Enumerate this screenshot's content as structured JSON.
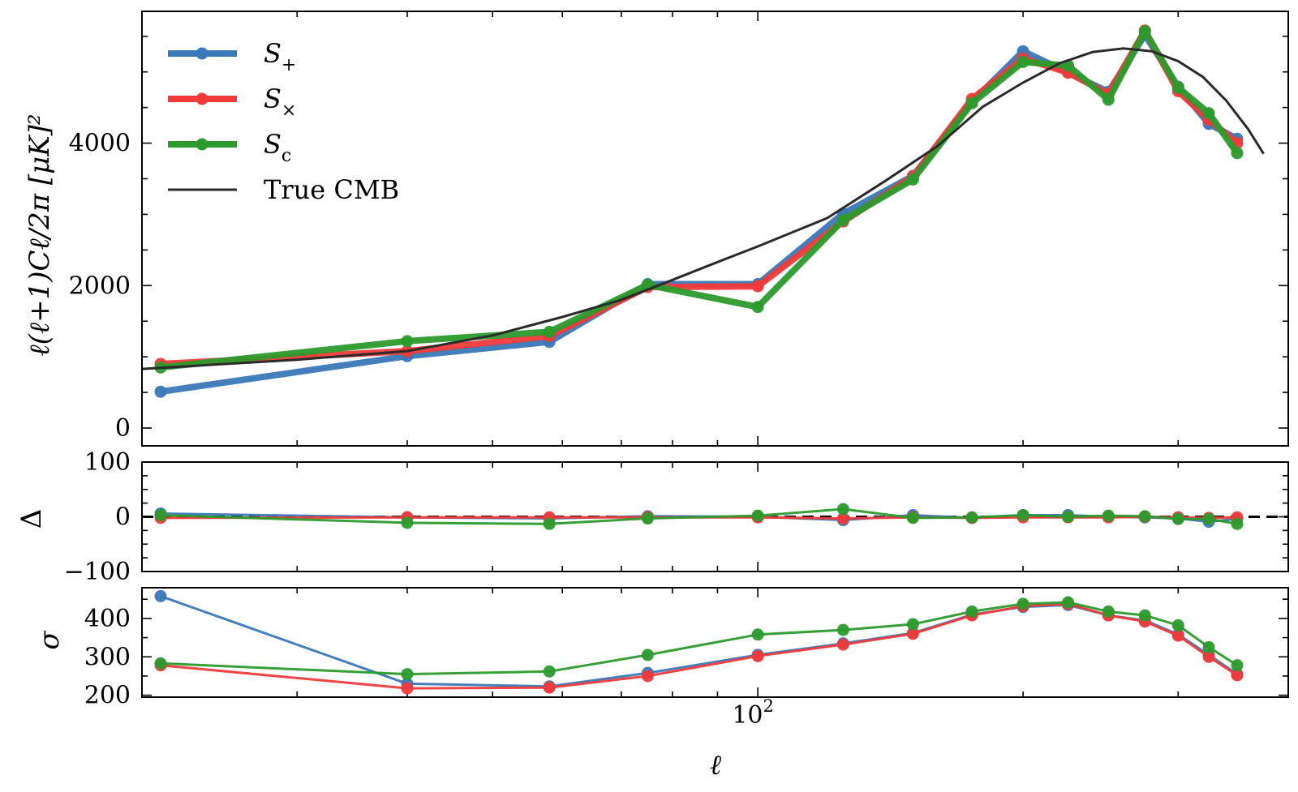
{
  "chart_data": {
    "type": "line",
    "x": [
      21,
      40,
      58,
      75,
      100,
      125,
      150,
      175,
      200,
      225,
      250,
      275,
      300,
      325,
      350,
      375
    ],
    "xlabel": "ℓ",
    "x_scale": "log",
    "xlim": [
      20,
      400
    ],
    "x_ticks": [
      {
        "value": 100,
        "base": "10",
        "exp": "2"
      }
    ],
    "legend_position": "upper-left",
    "panels": [
      {
        "name": "spectrum",
        "ylabel": "ℓ(ℓ+1)Cℓ/2π [μK]²",
        "ylim": [
          -250,
          5850
        ],
        "yticks": [
          0,
          2000,
          4000
        ],
        "series": [
          {
            "name": "S+",
            "label_main": "S",
            "label_sub": "+",
            "color": "#3a78b8",
            "values": [
              510,
              1010,
              1210,
              2020,
              2020,
              3010,
              3540,
              4580,
              5290,
              4990,
              4720,
              5520,
              4790,
              4270,
              4060,
              null
            ]
          },
          {
            "name": "S×",
            "label_main": "S",
            "label_sub": "×",
            "color": "#f03a3a",
            "values": [
              900,
              1080,
              1290,
              1980,
              1990,
              2900,
              3530,
              4620,
              5190,
              4990,
              4690,
              5580,
              4730,
              4330,
              4000,
              null
            ]
          },
          {
            "name": "Sc",
            "label_main": "S",
            "label_sub": "c",
            "color": "#2c9a2c",
            "values": [
              850,
              1220,
              1350,
              2010,
              1700,
              2920,
              3490,
              4560,
              5140,
              5090,
              4610,
              5570,
              4780,
              4420,
              3860,
              null
            ]
          },
          {
            "name": "True CMB",
            "label_main": "True CMB",
            "label_sub": "",
            "color": "#2a2a2a",
            "theory": [
              [
                20,
                830
              ],
              [
                30,
                960
              ],
              [
                40,
                1080
              ],
              [
                50,
                1300
              ],
              [
                60,
                1560
              ],
              [
                70,
                1800
              ],
              [
                80,
                2080
              ],
              [
                90,
                2330
              ],
              [
                100,
                2550
              ],
              [
                120,
                2950
              ],
              [
                140,
                3480
              ],
              [
                160,
                3960
              ],
              [
                180,
                4510
              ],
              [
                200,
                4850
              ],
              [
                220,
                5120
              ],
              [
                240,
                5280
              ],
              [
                260,
                5330
              ],
              [
                280,
                5290
              ],
              [
                300,
                5150
              ],
              [
                320,
                4930
              ],
              [
                340,
                4600
              ],
              [
                360,
                4200
              ],
              [
                375,
                3850
              ]
            ]
          }
        ]
      },
      {
        "name": "residual",
        "ylabel": "Δ",
        "ylim": [
          -100,
          100
        ],
        "yticks": [
          -100,
          0,
          100
        ],
        "ytick_labels": [
          "−100",
          "0",
          "100"
        ],
        "zero_line": true,
        "series": [
          {
            "name": "S+",
            "color": "#3a78b8",
            "values": [
              6,
              -1,
              -3,
              1,
              0,
              -6,
              3,
              -2,
              3,
              3,
              0,
              -1,
              -3,
              -9,
              -4,
              null
            ]
          },
          {
            "name": "S×",
            "color": "#f03a3a",
            "values": [
              -2,
              -1,
              -1,
              -1,
              -1,
              -3,
              -1,
              -2,
              -1,
              -1,
              -1,
              0,
              -1,
              -2,
              -1,
              null
            ]
          },
          {
            "name": "Sc",
            "color": "#2c9a2c",
            "values": [
              3,
              -11,
              -13,
              -3,
              2,
              14,
              -2,
              -1,
              3,
              0,
              2,
              1,
              -4,
              -4,
              -13,
              null
            ]
          }
        ]
      },
      {
        "name": "sigma",
        "ylabel": "σ",
        "ylim": [
          195,
          480
        ],
        "yticks": [
          200,
          300,
          400
        ],
        "series": [
          {
            "name": "S+",
            "color": "#3a78b8",
            "values": [
              458,
              230,
              223,
              258,
              305,
              335,
              362,
              410,
              430,
              435,
              408,
              395,
              358,
              305,
              255,
              null
            ]
          },
          {
            "name": "S×",
            "color": "#f03a3a",
            "values": [
              278,
              218,
              220,
              250,
              302,
              332,
              360,
              408,
              432,
              438,
              408,
              392,
              355,
              300,
              252,
              null
            ]
          },
          {
            "name": "Sc",
            "color": "#2c9a2c",
            "values": [
              283,
              255,
              262,
              305,
              358,
              370,
              385,
              418,
              438,
              442,
              418,
              408,
              382,
              325,
              278,
              null
            ]
          }
        ]
      }
    ]
  }
}
